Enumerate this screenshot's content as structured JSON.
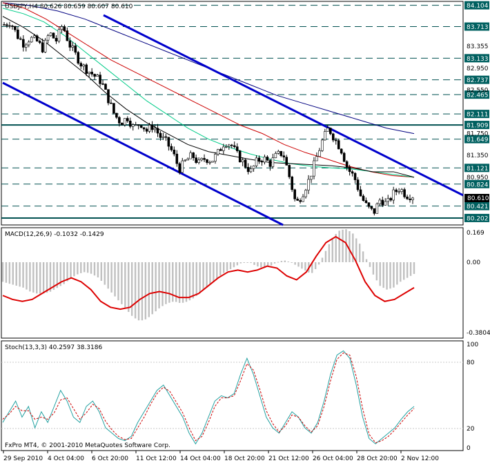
{
  "main_panel": {
    "header": "USDJPY,H4  80.626 80.659 80.607 80.610",
    "current_price": "80.610",
    "level_labels": [
      "84.104",
      "83.713",
      "83.133",
      "82.737",
      "82.465",
      "82.111",
      "81.909",
      "81.649",
      "81.121",
      "80.824",
      "80.421",
      "80.202"
    ],
    "plain_price_labels": [
      "83.355",
      "82.950",
      "82.550",
      "81.750",
      "81.350",
      "80.950"
    ]
  },
  "macd_panel": {
    "header": "MACD(12,26,9) -0.1032 -0.1429",
    "scale_labels": [
      "0.169",
      "0.00",
      "-0.3804"
    ]
  },
  "stoch_panel": {
    "header": "Stoch(13,3,3) 40.2597 38.3186",
    "scale_labels": [
      "100",
      "80",
      "20",
      "0"
    ]
  },
  "footer": {
    "copyright": "FxPro MT4, © 2001-2010 MetaQuotes Software Corp."
  },
  "time_axis": [
    "29 Sep 2010",
    "4 Oct 04:00",
    "6 Oct 20:00",
    "11 Oct 12:00",
    "14 Oct 04:00",
    "18 Oct 20:00",
    "21 Oct 12:00",
    "26 Oct 04:00",
    "28 Oct 20:00",
    "2 Nov 12:00"
  ],
  "colors": {
    "main_channel": "#0000cc",
    "level_line": "#005050",
    "ma_black": "#000000",
    "ma_green": "#00cc88",
    "ma_red": "#cc0000",
    "ma_navy": "#000080",
    "macd_hist": "#c0c0c0",
    "macd_signal": "#dd0000",
    "stoch_main": "#20a0a0",
    "stoch_signal": "#cc0000",
    "current_price_bg": "#000000"
  },
  "chart_data": [
    {
      "type": "candlestick",
      "symbol": "USDJPY",
      "timeframe": "H4",
      "ylim": [
        80.1,
        84.15
      ],
      "close_path": [
        83.75,
        83.8,
        83.55,
        83.4,
        83.5,
        83.45,
        83.3,
        83.6,
        83.45,
        83.75,
        83.4,
        83.2,
        83.0,
        82.9,
        82.8,
        82.7,
        82.4,
        82.1,
        81.95,
        82.05,
        81.85,
        81.95,
        81.8,
        81.9,
        81.7,
        81.6,
        81.4,
        81.1,
        81.25,
        81.35,
        81.2,
        81.3,
        81.25,
        81.4,
        81.6,
        81.55,
        81.35,
        81.2,
        81.05,
        81.25,
        81.3,
        81.2,
        81.35,
        81.4,
        80.95,
        80.45,
        80.65,
        80.9,
        81.25,
        81.6,
        81.85,
        81.65,
        81.45,
        81.1,
        80.95,
        80.6,
        80.4,
        80.3,
        80.55,
        80.45,
        80.65,
        80.75,
        80.62,
        80.61
      ],
      "horizontal_levels": [
        84.104,
        83.713,
        83.133,
        82.737,
        82.465,
        82.111,
        81.909,
        81.649,
        81.121,
        80.824,
        80.421,
        80.202
      ],
      "ma_black": [
        83.9,
        83.7,
        83.45,
        83.15,
        82.85,
        82.5,
        82.2,
        81.95,
        81.75,
        81.55,
        81.42,
        81.35,
        81.28,
        81.22,
        81.2,
        81.18,
        81.16,
        81.12,
        81.05,
        81.05,
        80.95
      ],
      "ma_green": [
        84.05,
        83.95,
        83.8,
        83.55,
        83.25,
        82.95,
        82.65,
        82.35,
        82.1,
        81.85,
        81.65,
        81.5,
        81.38,
        81.28,
        81.2,
        81.15,
        81.12,
        81.1,
        81.05,
        81.0,
        80.95
      ],
      "ma_red": [
        84.15,
        84.05,
        83.85,
        83.6,
        83.35,
        83.1,
        82.9,
        82.7,
        82.5,
        82.3,
        82.1,
        81.9,
        81.75,
        81.55,
        81.4,
        81.28,
        81.15,
        81.05,
        80.98,
        80.95
      ],
      "ma_navy": [
        84.15,
        84.1,
        84.0,
        83.85,
        83.65,
        83.45,
        83.25,
        83.05,
        82.85,
        82.65,
        82.45,
        82.3,
        82.15,
        82.0,
        81.85,
        81.75
      ]
    },
    {
      "type": "bar",
      "name": "MACD(12,26,9)",
      "ylim": [
        -0.3804,
        0.169
      ],
      "histogram": [
        -0.1,
        -0.11,
        -0.12,
        -0.13,
        -0.15,
        -0.16,
        -0.16,
        -0.15,
        -0.13,
        -0.11,
        -0.08,
        -0.06,
        -0.05,
        -0.06,
        -0.08,
        -0.12,
        -0.16,
        -0.2,
        -0.24,
        -0.28,
        -0.3,
        -0.29,
        -0.26,
        -0.23,
        -0.21,
        -0.2,
        -0.21,
        -0.2,
        -0.18,
        -0.15,
        -0.12,
        -0.09,
        -0.06,
        -0.04,
        -0.02,
        0.0,
        0.0,
        -0.02,
        -0.03,
        -0.02,
        0.0,
        0.01,
        0.0,
        -0.02,
        -0.04,
        -0.06,
        -0.02,
        0.05,
        0.12,
        0.16,
        0.17,
        0.15,
        0.1,
        0.02,
        -0.06,
        -0.12,
        -0.14,
        -0.13,
        -0.1,
        -0.08,
        -0.06
      ],
      "signal": [
        -0.17,
        -0.19,
        -0.2,
        -0.19,
        -0.16,
        -0.13,
        -0.1,
        -0.08,
        -0.1,
        -0.14,
        -0.2,
        -0.23,
        -0.24,
        -0.23,
        -0.19,
        -0.16,
        -0.15,
        -0.16,
        -0.18,
        -0.18,
        -0.16,
        -0.12,
        -0.08,
        -0.05,
        -0.04,
        -0.05,
        -0.04,
        -0.02,
        -0.03,
        -0.07,
        -0.09,
        -0.05,
        0.03,
        0.1,
        0.13,
        0.1,
        0.01,
        -0.1,
        -0.17,
        -0.2,
        -0.19,
        -0.16,
        -0.13
      ]
    },
    {
      "type": "line",
      "name": "Stoch(13,3,3)",
      "ylim": [
        0,
        100
      ],
      "main": [
        25,
        35,
        45,
        30,
        40,
        20,
        35,
        25,
        40,
        55,
        45,
        30,
        25,
        40,
        45,
        35,
        20,
        15,
        10,
        8,
        12,
        25,
        35,
        45,
        55,
        60,
        50,
        40,
        30,
        15,
        5,
        15,
        30,
        45,
        50,
        48,
        52,
        70,
        85,
        70,
        50,
        30,
        20,
        15,
        25,
        35,
        30,
        20,
        15,
        25,
        45,
        70,
        88,
        92,
        85,
        60,
        30,
        10,
        5,
        10,
        15,
        20,
        28,
        35,
        40
      ],
      "signal": [
        28,
        33,
        40,
        36,
        36,
        28,
        30,
        28,
        34,
        46,
        48,
        38,
        28,
        34,
        42,
        38,
        26,
        18,
        12,
        9,
        10,
        20,
        30,
        42,
        52,
        58,
        54,
        44,
        34,
        20,
        8,
        12,
        25,
        40,
        48,
        48,
        50,
        64,
        80,
        74,
        56,
        36,
        24,
        16,
        22,
        32,
        30,
        22,
        16,
        22,
        40,
        64,
        84,
        90,
        88,
        68,
        38,
        14,
        6,
        8,
        12,
        18,
        25,
        32,
        38
      ]
    }
  ]
}
